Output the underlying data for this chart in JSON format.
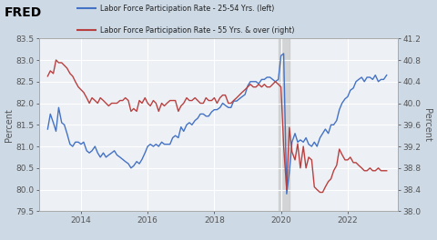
{
  "legend_blue": "Labor Force Participation Rate - 25-54 Yrs. (left)",
  "legend_red": "Labor Force Participation Rate - 55 Yrs. & over (right)",
  "ylabel_left": "Percent",
  "ylabel_right": "Percent",
  "ylim_left": [
    79.5,
    83.5
  ],
  "ylim_right": [
    38.0,
    41.2
  ],
  "yticks_left": [
    79.5,
    80.0,
    80.5,
    81.0,
    81.5,
    82.0,
    82.5,
    83.0,
    83.5
  ],
  "yticks_right": [
    38.0,
    38.4,
    38.8,
    39.2,
    39.6,
    40.0,
    40.4,
    40.8,
    41.2
  ],
  "background_color": "#cdd9e5",
  "plot_bg_color": "#edf1f5",
  "grid_color": "#ffffff",
  "shade_start": 2019.92,
  "shade_end": 2020.25,
  "blue_color": "#4472c4",
  "red_color": "#b94040",
  "xtick_years": [
    2014,
    2016,
    2018,
    2020,
    2022
  ],
  "xlim": [
    2012.75,
    2023.5
  ],
  "blue_data": [
    [
      2013.0,
      81.4
    ],
    [
      2013.08,
      81.75
    ],
    [
      2013.17,
      81.55
    ],
    [
      2013.25,
      81.35
    ],
    [
      2013.33,
      81.9
    ],
    [
      2013.42,
      81.55
    ],
    [
      2013.5,
      81.5
    ],
    [
      2013.58,
      81.3
    ],
    [
      2013.67,
      81.05
    ],
    [
      2013.75,
      81.0
    ],
    [
      2013.83,
      81.1
    ],
    [
      2013.92,
      81.1
    ],
    [
      2014.0,
      81.05
    ],
    [
      2014.08,
      81.1
    ],
    [
      2014.17,
      80.9
    ],
    [
      2014.25,
      80.85
    ],
    [
      2014.33,
      80.9
    ],
    [
      2014.42,
      81.0
    ],
    [
      2014.5,
      80.85
    ],
    [
      2014.58,
      80.75
    ],
    [
      2014.67,
      80.85
    ],
    [
      2014.75,
      80.75
    ],
    [
      2014.83,
      80.8
    ],
    [
      2014.92,
      80.85
    ],
    [
      2015.0,
      80.9
    ],
    [
      2015.08,
      80.8
    ],
    [
      2015.17,
      80.75
    ],
    [
      2015.25,
      80.7
    ],
    [
      2015.33,
      80.65
    ],
    [
      2015.42,
      80.6
    ],
    [
      2015.5,
      80.5
    ],
    [
      2015.58,
      80.55
    ],
    [
      2015.67,
      80.65
    ],
    [
      2015.75,
      80.6
    ],
    [
      2015.83,
      80.7
    ],
    [
      2015.92,
      80.85
    ],
    [
      2016.0,
      81.0
    ],
    [
      2016.08,
      81.05
    ],
    [
      2016.17,
      81.0
    ],
    [
      2016.25,
      81.05
    ],
    [
      2016.33,
      81.0
    ],
    [
      2016.42,
      81.1
    ],
    [
      2016.5,
      81.05
    ],
    [
      2016.58,
      81.05
    ],
    [
      2016.67,
      81.05
    ],
    [
      2016.75,
      81.2
    ],
    [
      2016.83,
      81.25
    ],
    [
      2016.92,
      81.2
    ],
    [
      2017.0,
      81.45
    ],
    [
      2017.08,
      81.35
    ],
    [
      2017.17,
      81.5
    ],
    [
      2017.25,
      81.55
    ],
    [
      2017.33,
      81.5
    ],
    [
      2017.42,
      81.6
    ],
    [
      2017.5,
      81.65
    ],
    [
      2017.58,
      81.75
    ],
    [
      2017.67,
      81.75
    ],
    [
      2017.75,
      81.7
    ],
    [
      2017.83,
      81.7
    ],
    [
      2017.92,
      81.8
    ],
    [
      2018.0,
      81.85
    ],
    [
      2018.08,
      81.85
    ],
    [
      2018.17,
      81.9
    ],
    [
      2018.25,
      82.0
    ],
    [
      2018.33,
      81.95
    ],
    [
      2018.42,
      81.9
    ],
    [
      2018.5,
      81.9
    ],
    [
      2018.58,
      82.05
    ],
    [
      2018.67,
      82.05
    ],
    [
      2018.75,
      82.1
    ],
    [
      2018.83,
      82.15
    ],
    [
      2018.92,
      82.2
    ],
    [
      2019.0,
      82.4
    ],
    [
      2019.08,
      82.5
    ],
    [
      2019.17,
      82.5
    ],
    [
      2019.25,
      82.5
    ],
    [
      2019.33,
      82.45
    ],
    [
      2019.42,
      82.55
    ],
    [
      2019.5,
      82.55
    ],
    [
      2019.58,
      82.6
    ],
    [
      2019.67,
      82.6
    ],
    [
      2019.75,
      82.55
    ],
    [
      2019.83,
      82.5
    ],
    [
      2019.92,
      82.55
    ],
    [
      2020.0,
      83.1
    ],
    [
      2020.08,
      83.15
    ],
    [
      2020.17,
      79.9
    ],
    [
      2020.25,
      80.4
    ],
    [
      2020.33,
      81.1
    ],
    [
      2020.42,
      81.3
    ],
    [
      2020.5,
      81.1
    ],
    [
      2020.58,
      81.15
    ],
    [
      2020.67,
      81.1
    ],
    [
      2020.75,
      81.2
    ],
    [
      2020.83,
      81.05
    ],
    [
      2020.92,
      81.0
    ],
    [
      2021.0,
      81.1
    ],
    [
      2021.08,
      81.0
    ],
    [
      2021.17,
      81.2
    ],
    [
      2021.25,
      81.3
    ],
    [
      2021.33,
      81.4
    ],
    [
      2021.42,
      81.3
    ],
    [
      2021.5,
      81.5
    ],
    [
      2021.58,
      81.5
    ],
    [
      2021.67,
      81.6
    ],
    [
      2021.75,
      81.85
    ],
    [
      2021.83,
      82.0
    ],
    [
      2021.92,
      82.1
    ],
    [
      2022.0,
      82.15
    ],
    [
      2022.08,
      82.3
    ],
    [
      2022.17,
      82.35
    ],
    [
      2022.25,
      82.5
    ],
    [
      2022.33,
      82.55
    ],
    [
      2022.42,
      82.6
    ],
    [
      2022.5,
      82.5
    ],
    [
      2022.58,
      82.6
    ],
    [
      2022.67,
      82.6
    ],
    [
      2022.75,
      82.55
    ],
    [
      2022.83,
      82.65
    ],
    [
      2022.92,
      82.5
    ],
    [
      2023.0,
      82.55
    ],
    [
      2023.08,
      82.55
    ],
    [
      2023.17,
      82.65
    ]
  ],
  "red_data": [
    [
      2013.0,
      40.5
    ],
    [
      2013.08,
      40.6
    ],
    [
      2013.17,
      40.55
    ],
    [
      2013.25,
      40.8
    ],
    [
      2013.33,
      40.75
    ],
    [
      2013.42,
      40.75
    ],
    [
      2013.5,
      40.7
    ],
    [
      2013.58,
      40.65
    ],
    [
      2013.67,
      40.55
    ],
    [
      2013.75,
      40.5
    ],
    [
      2013.83,
      40.4
    ],
    [
      2013.92,
      40.3
    ],
    [
      2014.0,
      40.25
    ],
    [
      2014.08,
      40.2
    ],
    [
      2014.17,
      40.1
    ],
    [
      2014.25,
      40.0
    ],
    [
      2014.33,
      40.1
    ],
    [
      2014.42,
      40.05
    ],
    [
      2014.5,
      40.0
    ],
    [
      2014.58,
      40.1
    ],
    [
      2014.67,
      40.05
    ],
    [
      2014.75,
      40.0
    ],
    [
      2014.83,
      39.95
    ],
    [
      2014.92,
      40.0
    ],
    [
      2015.0,
      40.0
    ],
    [
      2015.08,
      40.0
    ],
    [
      2015.17,
      40.05
    ],
    [
      2015.25,
      40.05
    ],
    [
      2015.33,
      40.1
    ],
    [
      2015.42,
      40.05
    ],
    [
      2015.5,
      39.85
    ],
    [
      2015.58,
      39.9
    ],
    [
      2015.67,
      39.85
    ],
    [
      2015.75,
      40.05
    ],
    [
      2015.83,
      40.0
    ],
    [
      2015.92,
      40.1
    ],
    [
      2016.0,
      40.0
    ],
    [
      2016.08,
      39.95
    ],
    [
      2016.17,
      40.05
    ],
    [
      2016.25,
      40.0
    ],
    [
      2016.33,
      39.85
    ],
    [
      2016.42,
      40.0
    ],
    [
      2016.5,
      39.95
    ],
    [
      2016.58,
      40.0
    ],
    [
      2016.67,
      40.05
    ],
    [
      2016.75,
      40.05
    ],
    [
      2016.83,
      40.05
    ],
    [
      2016.92,
      39.85
    ],
    [
      2017.0,
      39.95
    ],
    [
      2017.08,
      40.0
    ],
    [
      2017.17,
      40.1
    ],
    [
      2017.25,
      40.05
    ],
    [
      2017.33,
      40.05
    ],
    [
      2017.42,
      40.1
    ],
    [
      2017.5,
      40.05
    ],
    [
      2017.58,
      40.0
    ],
    [
      2017.67,
      40.0
    ],
    [
      2017.75,
      40.1
    ],
    [
      2017.83,
      40.05
    ],
    [
      2017.92,
      40.05
    ],
    [
      2018.0,
      40.1
    ],
    [
      2018.08,
      40.0
    ],
    [
      2018.17,
      40.1
    ],
    [
      2018.25,
      40.15
    ],
    [
      2018.33,
      40.15
    ],
    [
      2018.42,
      40.0
    ],
    [
      2018.5,
      40.0
    ],
    [
      2018.58,
      40.05
    ],
    [
      2018.67,
      40.1
    ],
    [
      2018.75,
      40.15
    ],
    [
      2018.83,
      40.2
    ],
    [
      2018.92,
      40.25
    ],
    [
      2019.0,
      40.3
    ],
    [
      2019.08,
      40.35
    ],
    [
      2019.17,
      40.3
    ],
    [
      2019.25,
      40.3
    ],
    [
      2019.33,
      40.35
    ],
    [
      2019.42,
      40.3
    ],
    [
      2019.5,
      40.35
    ],
    [
      2019.58,
      40.3
    ],
    [
      2019.67,
      40.3
    ],
    [
      2019.75,
      40.35
    ],
    [
      2019.83,
      40.4
    ],
    [
      2019.92,
      40.35
    ],
    [
      2020.0,
      40.3
    ],
    [
      2020.08,
      39.2
    ],
    [
      2020.17,
      38.4
    ],
    [
      2020.25,
      39.55
    ],
    [
      2020.33,
      39.1
    ],
    [
      2020.42,
      38.95
    ],
    [
      2020.5,
      39.25
    ],
    [
      2020.58,
      38.8
    ],
    [
      2020.67,
      39.2
    ],
    [
      2020.75,
      38.8
    ],
    [
      2020.83,
      39.0
    ],
    [
      2020.92,
      38.95
    ],
    [
      2021.0,
      38.45
    ],
    [
      2021.08,
      38.4
    ],
    [
      2021.17,
      38.35
    ],
    [
      2021.25,
      38.35
    ],
    [
      2021.33,
      38.45
    ],
    [
      2021.42,
      38.55
    ],
    [
      2021.5,
      38.6
    ],
    [
      2021.58,
      38.75
    ],
    [
      2021.67,
      38.85
    ],
    [
      2021.75,
      39.15
    ],
    [
      2021.83,
      39.05
    ],
    [
      2021.92,
      38.95
    ],
    [
      2022.0,
      38.95
    ],
    [
      2022.08,
      39.0
    ],
    [
      2022.17,
      38.9
    ],
    [
      2022.25,
      38.9
    ],
    [
      2022.33,
      38.85
    ],
    [
      2022.42,
      38.8
    ],
    [
      2022.5,
      38.75
    ],
    [
      2022.58,
      38.75
    ],
    [
      2022.67,
      38.8
    ],
    [
      2022.75,
      38.75
    ],
    [
      2022.83,
      38.75
    ],
    [
      2022.92,
      38.8
    ],
    [
      2023.0,
      38.75
    ],
    [
      2023.08,
      38.75
    ],
    [
      2023.17,
      38.75
    ]
  ]
}
